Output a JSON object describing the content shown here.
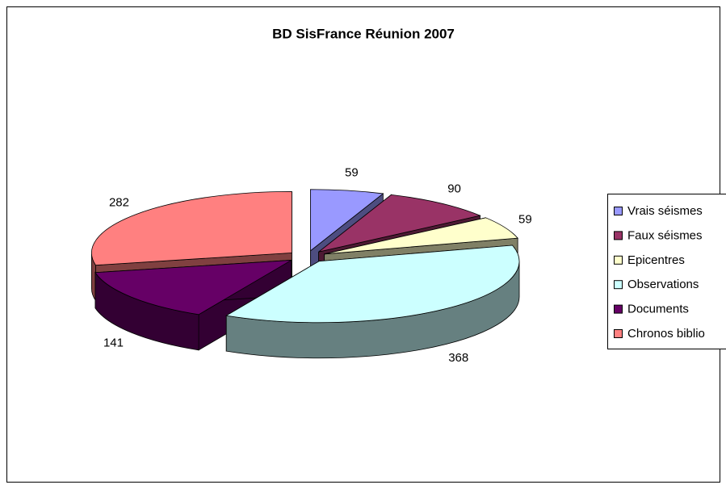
{
  "chart_data": {
    "type": "pie",
    "title": "BD SisFrance Réunion 2007",
    "categories": [
      "Vrais séismes",
      "Faux séismes",
      "Epicentres",
      "Observations",
      "Documents",
      "Chronos biblio"
    ],
    "values": [
      59,
      90,
      59,
      368,
      141,
      282
    ],
    "colors": [
      "#9999ff",
      "#993366",
      "#ffffcc",
      "#ccffff",
      "#660066",
      "#ff8080"
    ],
    "legend": "right"
  }
}
